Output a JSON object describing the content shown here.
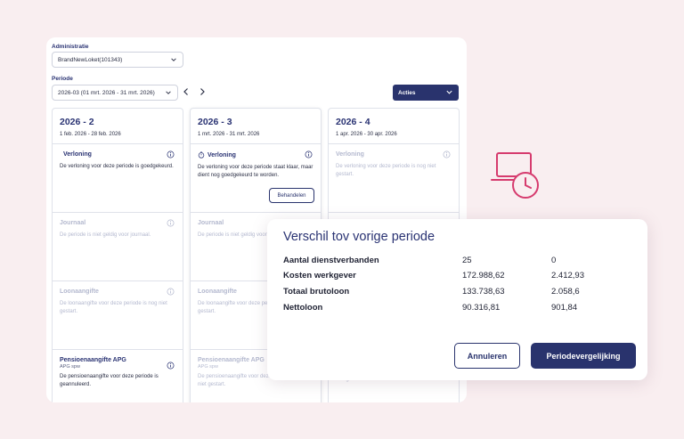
{
  "colors": {
    "navy": "#29336d",
    "accent": "#d63b6e",
    "muted": "#b4b9cf",
    "background": "#f9eef0"
  },
  "administratie": {
    "label": "Administratie",
    "value": "BrandNewLoket(101343)"
  },
  "periode": {
    "label": "Periode",
    "value": "2026-03 (01 mrt. 2026 - 31 mrt. 2026)"
  },
  "acties": {
    "label": "Acties"
  },
  "columns": [
    {
      "title": "2026 - 2",
      "range": "1 feb. 2026 - 28 feb. 2026",
      "cells": [
        {
          "title": "Verloning",
          "text": "De verloning voor deze periode is goedgekeurd."
        },
        {
          "title": "Journaal",
          "text": "De periode is niet geldig voor journaal."
        },
        {
          "title": "Loonaangifte",
          "text": "De loonaangifte voor deze periode is nog niet gestart."
        },
        {
          "title": "Pensioenaangifte APG",
          "sub": "APG spw",
          "text": "De pensioenaangifte voor deze periode is geannuleerd."
        }
      ]
    },
    {
      "title": "2026 - 3",
      "range": "1 mrt. 2026 - 31 mrt. 2026",
      "cells": [
        {
          "title": "Verloning",
          "text": "De verloning voor deze periode staat klaar, maar dient nog goedgekeurd te worden.",
          "button": "Behandelen"
        },
        {
          "title": "Journaal",
          "text": "De periode is niet geldig voor journaal."
        },
        {
          "title": "Loonaangifte",
          "text": "De loonaangifte voor deze periode is nog niet gestart."
        },
        {
          "title": "Pensioenaangifte APG",
          "sub": "APG spw",
          "text": "De pensioenaangifte voor deze periode is nog niet gestart."
        }
      ]
    },
    {
      "title": "2026 - 4",
      "range": "1 apr. 2026 - 30 apr. 2026",
      "cells": [
        {
          "title": "Verloning",
          "text": "De verloning voor deze periode is nog niet gestart."
        },
        {
          "text": "De pensioenaangifte voor deze periode is nog niet gestart."
        }
      ]
    }
  ],
  "popup": {
    "title": "Verschil tov vorige periode",
    "rows": [
      {
        "label": "Aantal dienstverbanden",
        "v1": "25",
        "v2": "0"
      },
      {
        "label": "Kosten werkgever",
        "v1": "172.988,62",
        "v2": "2.412,93"
      },
      {
        "label": "Totaal brutoloon",
        "v1": "133.738,63",
        "v2": "2.058,6"
      },
      {
        "label": "Nettoloon",
        "v1": "90.316,81",
        "v2": "901,84"
      }
    ],
    "cancel_label": "Annuleren",
    "compare_label": "Periodevergelijking"
  }
}
